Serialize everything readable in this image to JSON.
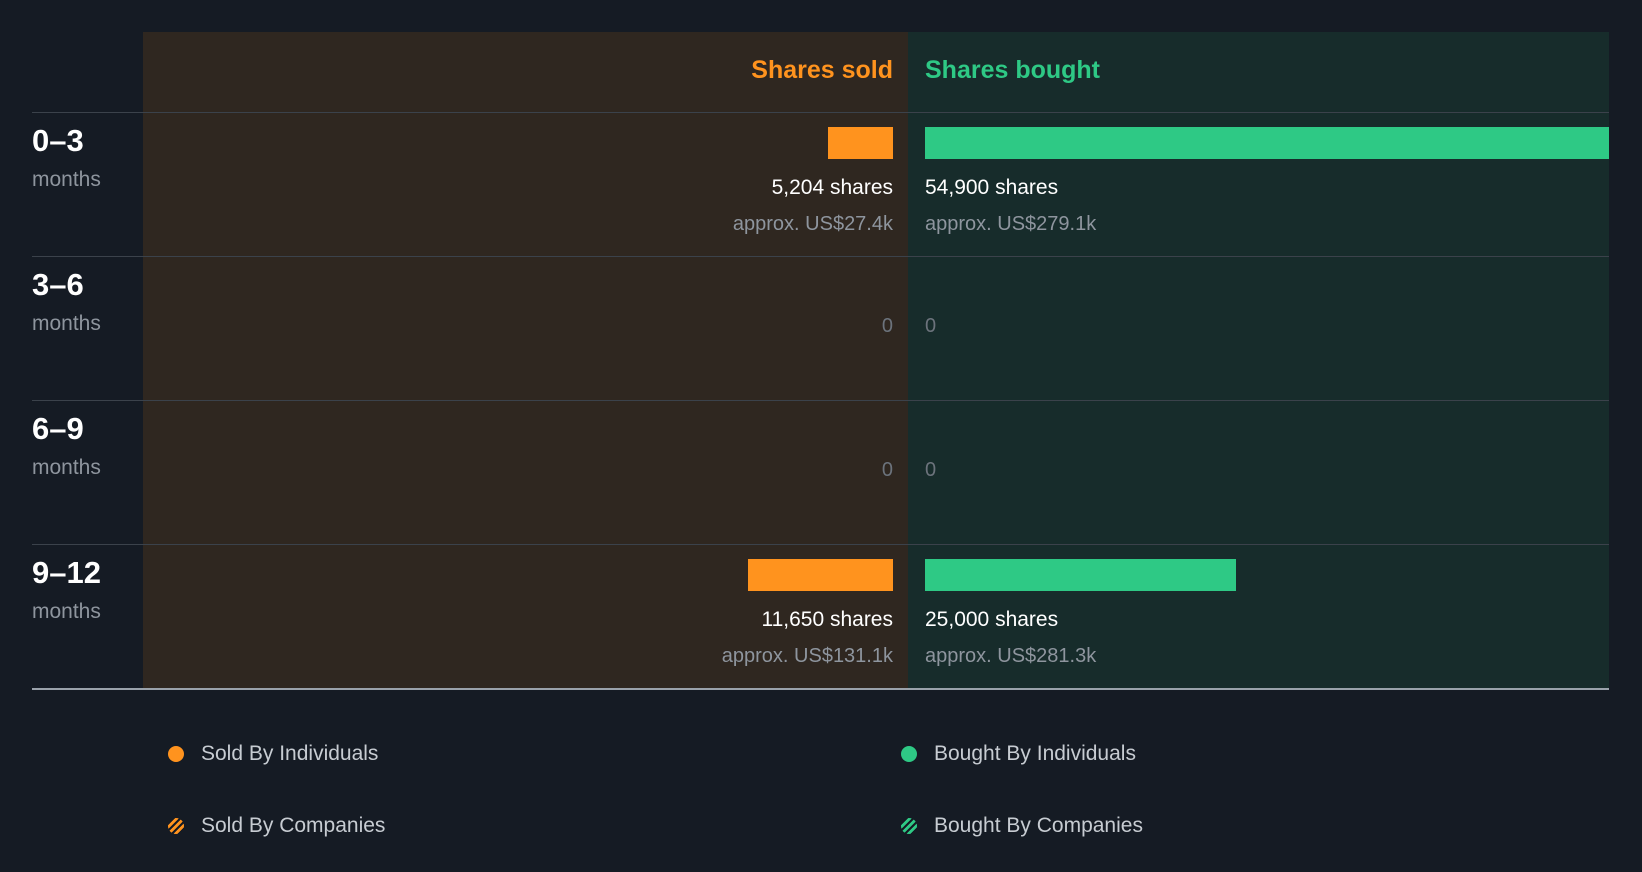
{
  "chart_data": {
    "type": "bar",
    "title": "",
    "orientation": "horizontal-diverging",
    "headers": {
      "sold": "Shares sold",
      "bought": "Shares bought"
    },
    "categories": [
      {
        "range": "0–3",
        "unit": "months"
      },
      {
        "range": "3–6",
        "unit": "months"
      },
      {
        "range": "6–9",
        "unit": "months"
      },
      {
        "range": "9–12",
        "unit": "months"
      }
    ],
    "series": [
      {
        "name": "Shares sold",
        "values": [
          5204,
          0,
          0,
          11650
        ],
        "labels": [
          "5,204 shares",
          "0",
          "0",
          "11,650 shares"
        ],
        "approx": [
          "approx. US$27.4k",
          "",
          "",
          "approx. US$131.1k"
        ]
      },
      {
        "name": "Shares bought",
        "values": [
          54900,
          0,
          0,
          25000
        ],
        "labels": [
          "54,900 shares",
          "0",
          "0",
          "25,000 shares"
        ],
        "approx": [
          "approx. US$279.1k",
          "",
          "",
          "approx. US$281.3k"
        ]
      }
    ],
    "max_value": 54900,
    "colors": {
      "sold": "#ff931e",
      "bought": "#2ec985"
    },
    "legend": [
      {
        "label": "Sold By Individuals",
        "color": "#ff931e",
        "style": "solid"
      },
      {
        "label": "Bought By Individuals",
        "color": "#2ec985",
        "style": "solid"
      },
      {
        "label": "Sold By Companies",
        "color": "#ff931e",
        "style": "hatched"
      },
      {
        "label": "Bought By Companies",
        "color": "#2ec985",
        "style": "hatched"
      }
    ]
  }
}
